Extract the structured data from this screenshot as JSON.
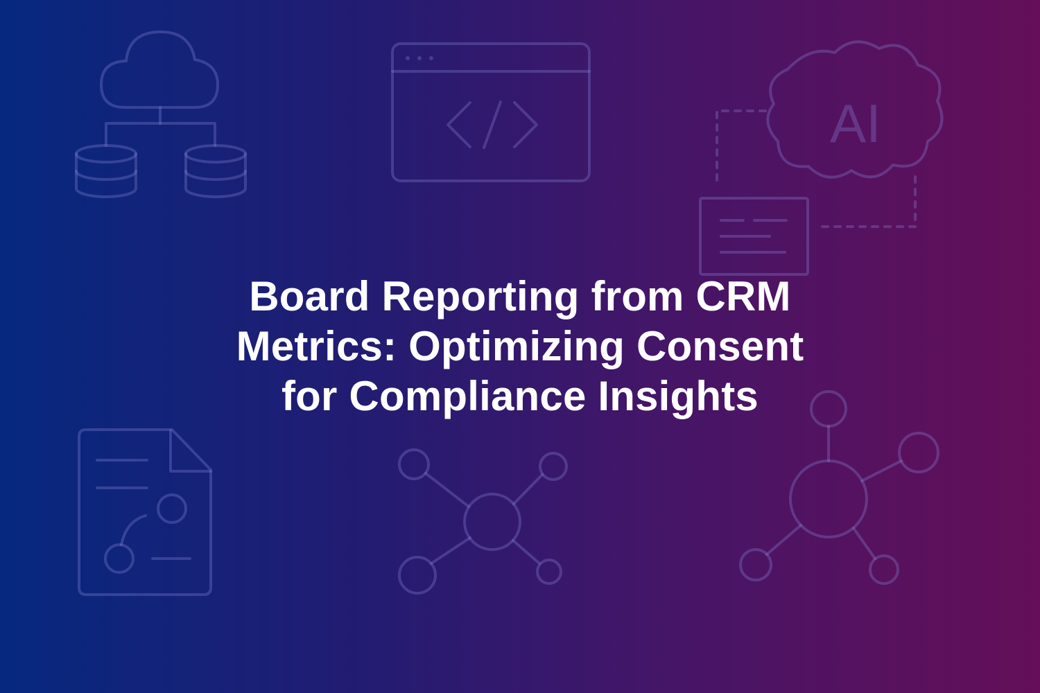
{
  "banner": {
    "title_lines": [
      "Board Reporting from CRM",
      "Metrics: Optimizing Consent",
      "for Compliance Insights"
    ],
    "background_gradient": [
      "#06287f",
      "#221c72",
      "#461567",
      "#640f58"
    ],
    "text_color": "#ffffff",
    "icon_stroke_color": "#8a86d6",
    "icon_text": "AI",
    "background_icons": [
      "cloud-database-icon",
      "code-window-icon",
      "ai-cloud-icon",
      "document-lines-icon",
      "document-network-icon",
      "network-hub-icon",
      "network-hub-large-icon"
    ]
  }
}
